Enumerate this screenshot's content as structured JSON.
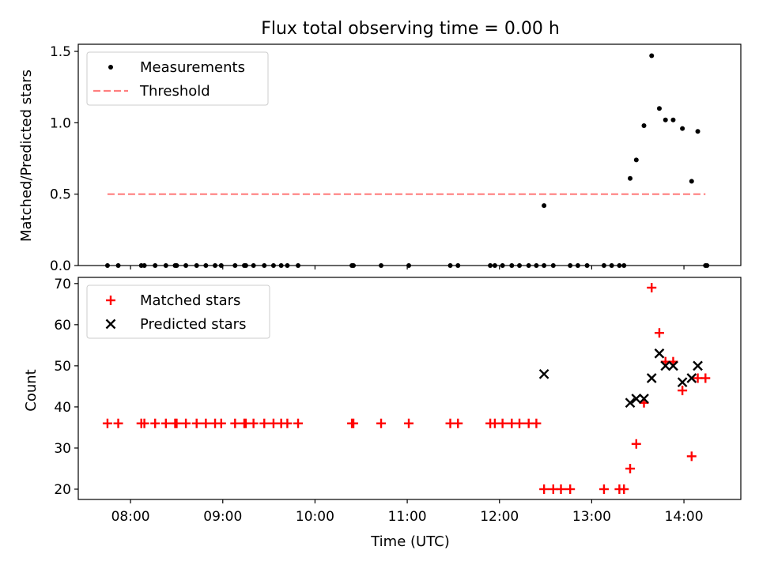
{
  "chart_data": [
    {
      "type": "scatter",
      "title": "Flux total observing time = 0.00 h",
      "xlabel": "",
      "ylabel": "Matched/Predicted stars",
      "xlim": [
        "07:26",
        "14:37"
      ],
      "ylim": [
        0,
        1.55
      ],
      "yticks": [
        0.0,
        0.5,
        1.0,
        1.5
      ],
      "ytick_labels": [
        "0.0",
        "0.5",
        "1.0",
        "1.5"
      ],
      "legend": {
        "placement": "upper-left",
        "entries": [
          "Measurements",
          "Threshold"
        ]
      },
      "grid": false,
      "series": [
        {
          "name": "Measurements",
          "marker": "dot",
          "color": "#000000",
          "points": [
            [
              "07:45",
              0
            ],
            [
              "07:52",
              0
            ],
            [
              "08:07",
              0
            ],
            [
              "08:09",
              0
            ],
            [
              "08:16",
              0
            ],
            [
              "08:23",
              0
            ],
            [
              "08:29",
              0
            ],
            [
              "08:30",
              0
            ],
            [
              "08:36",
              0
            ],
            [
              "08:43",
              0
            ],
            [
              "08:49",
              0
            ],
            [
              "08:55",
              0
            ],
            [
              "08:59",
              0
            ],
            [
              "09:08",
              0
            ],
            [
              "09:14",
              0
            ],
            [
              "09:15",
              0
            ],
            [
              "09:20",
              0
            ],
            [
              "09:27",
              0
            ],
            [
              "09:33",
              0
            ],
            [
              "09:38",
              0
            ],
            [
              "09:42",
              0
            ],
            [
              "09:49",
              0
            ],
            [
              "10:24",
              0
            ],
            [
              "10:25",
              0
            ],
            [
              "10:43",
              0
            ],
            [
              "11:01",
              0
            ],
            [
              "11:28",
              0
            ],
            [
              "11:33",
              0
            ],
            [
              "11:54",
              0
            ],
            [
              "11:57",
              0
            ],
            [
              "12:02",
              0
            ],
            [
              "12:08",
              0
            ],
            [
              "12:13",
              0
            ],
            [
              "12:19",
              0
            ],
            [
              "12:24",
              0
            ],
            [
              "12:29",
              0
            ],
            [
              "12:35",
              0
            ],
            [
              "12:46",
              0
            ],
            [
              "12:51",
              0
            ],
            [
              "12:57",
              0
            ],
            [
              "13:08",
              0
            ],
            [
              "13:13",
              0
            ],
            [
              "13:18",
              0
            ],
            [
              "13:21",
              0
            ],
            [
              "14:15",
              0
            ],
            [
              "12:29",
              0.42
            ],
            [
              "13:25",
              0.61
            ],
            [
              "13:29",
              0.74
            ],
            [
              "13:34",
              0.98
            ],
            [
              "13:39",
              1.47
            ],
            [
              "13:44",
              1.1
            ],
            [
              "13:48",
              1.02
            ],
            [
              "13:53",
              1.02
            ],
            [
              "13:59",
              0.96
            ],
            [
              "14:05",
              0.59
            ],
            [
              "14:09",
              0.94
            ],
            [
              "14:14",
              0.0
            ]
          ]
        },
        {
          "name": "Threshold",
          "marker": "dashed-line",
          "color": "#ff7f7f",
          "points": [
            [
              "07:45",
              0.5
            ],
            [
              "14:14",
              0.5
            ]
          ]
        }
      ]
    },
    {
      "type": "scatter",
      "title": "",
      "xlabel": "Time (UTC)",
      "ylabel": "Count",
      "xlim": [
        "07:26",
        "14:37"
      ],
      "ylim": [
        17.5,
        71.5
      ],
      "yticks": [
        20,
        30,
        40,
        50,
        60,
        70
      ],
      "xticks": [
        "08:00",
        "09:00",
        "10:00",
        "11:00",
        "12:00",
        "13:00",
        "14:00"
      ],
      "legend": {
        "placement": "upper-left",
        "entries": [
          "Matched stars",
          "Predicted stars"
        ]
      },
      "grid": false,
      "series": [
        {
          "name": "Matched stars",
          "marker": "plus",
          "color": "#ff0000",
          "points": [
            [
              "07:45",
              36
            ],
            [
              "07:52",
              36
            ],
            [
              "08:07",
              36
            ],
            [
              "08:09",
              36
            ],
            [
              "08:16",
              36
            ],
            [
              "08:23",
              36
            ],
            [
              "08:29",
              36
            ],
            [
              "08:30",
              36
            ],
            [
              "08:36",
              36
            ],
            [
              "08:43",
              36
            ],
            [
              "08:49",
              36
            ],
            [
              "08:55",
              36
            ],
            [
              "08:59",
              36
            ],
            [
              "09:08",
              36
            ],
            [
              "09:14",
              36
            ],
            [
              "09:15",
              36
            ],
            [
              "09:20",
              36
            ],
            [
              "09:27",
              36
            ],
            [
              "09:33",
              36
            ],
            [
              "09:38",
              36
            ],
            [
              "09:42",
              36
            ],
            [
              "09:49",
              36
            ],
            [
              "10:24",
              36
            ],
            [
              "10:25",
              36
            ],
            [
              "10:43",
              36
            ],
            [
              "11:01",
              36
            ],
            [
              "11:28",
              36
            ],
            [
              "11:33",
              36
            ],
            [
              "11:54",
              36
            ],
            [
              "11:57",
              36
            ],
            [
              "12:02",
              36
            ],
            [
              "12:08",
              36
            ],
            [
              "12:13",
              36
            ],
            [
              "12:19",
              36
            ],
            [
              "12:24",
              36
            ],
            [
              "12:29",
              20
            ],
            [
              "12:35",
              20
            ],
            [
              "12:40",
              20
            ],
            [
              "12:46",
              20
            ],
            [
              "13:08",
              20
            ],
            [
              "13:18",
              20
            ],
            [
              "13:21",
              20
            ],
            [
              "13:25",
              25
            ],
            [
              "13:29",
              31
            ],
            [
              "13:34",
              41
            ],
            [
              "13:39",
              69
            ],
            [
              "13:44",
              58
            ],
            [
              "13:48",
              51
            ],
            [
              "13:53",
              51
            ],
            [
              "13:59",
              44
            ],
            [
              "14:05",
              28
            ],
            [
              "14:09",
              47
            ],
            [
              "14:14",
              47
            ]
          ]
        },
        {
          "name": "Predicted stars",
          "marker": "x",
          "color": "#000000",
          "points": [
            [
              "12:29",
              48
            ],
            [
              "13:25",
              41
            ],
            [
              "13:29",
              42
            ],
            [
              "13:34",
              42
            ],
            [
              "13:39",
              47
            ],
            [
              "13:44",
              53
            ],
            [
              "13:48",
              50
            ],
            [
              "13:53",
              50
            ],
            [
              "13:59",
              46
            ],
            [
              "14:05",
              47
            ],
            [
              "14:09",
              50
            ]
          ]
        }
      ]
    }
  ]
}
